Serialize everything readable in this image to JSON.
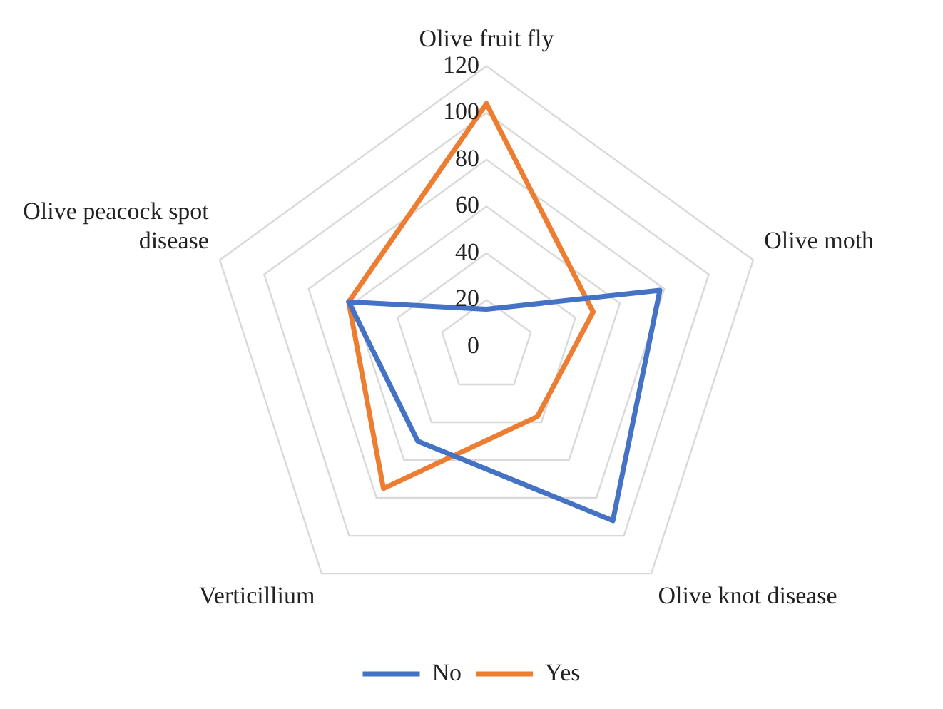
{
  "chart_data": {
    "type": "radar",
    "categories": [
      "Olive fruit fly",
      "Olive moth",
      "Olive knot disease",
      "Verticillium",
      "Olive peacock spot disease"
    ],
    "series": [
      {
        "name": "No",
        "color": "#4472c4",
        "values": [
          16,
          78,
          92,
          50,
          62
        ]
      },
      {
        "name": "Yes",
        "color": "#ed7d31",
        "values": [
          104,
          48,
          37,
          75,
          62
        ]
      }
    ],
    "ylim": [
      0,
      120
    ],
    "yticks": [
      0,
      20,
      40,
      60,
      80,
      100,
      120
    ],
    "grid": true,
    "legend": "bottom",
    "marker": "none"
  }
}
